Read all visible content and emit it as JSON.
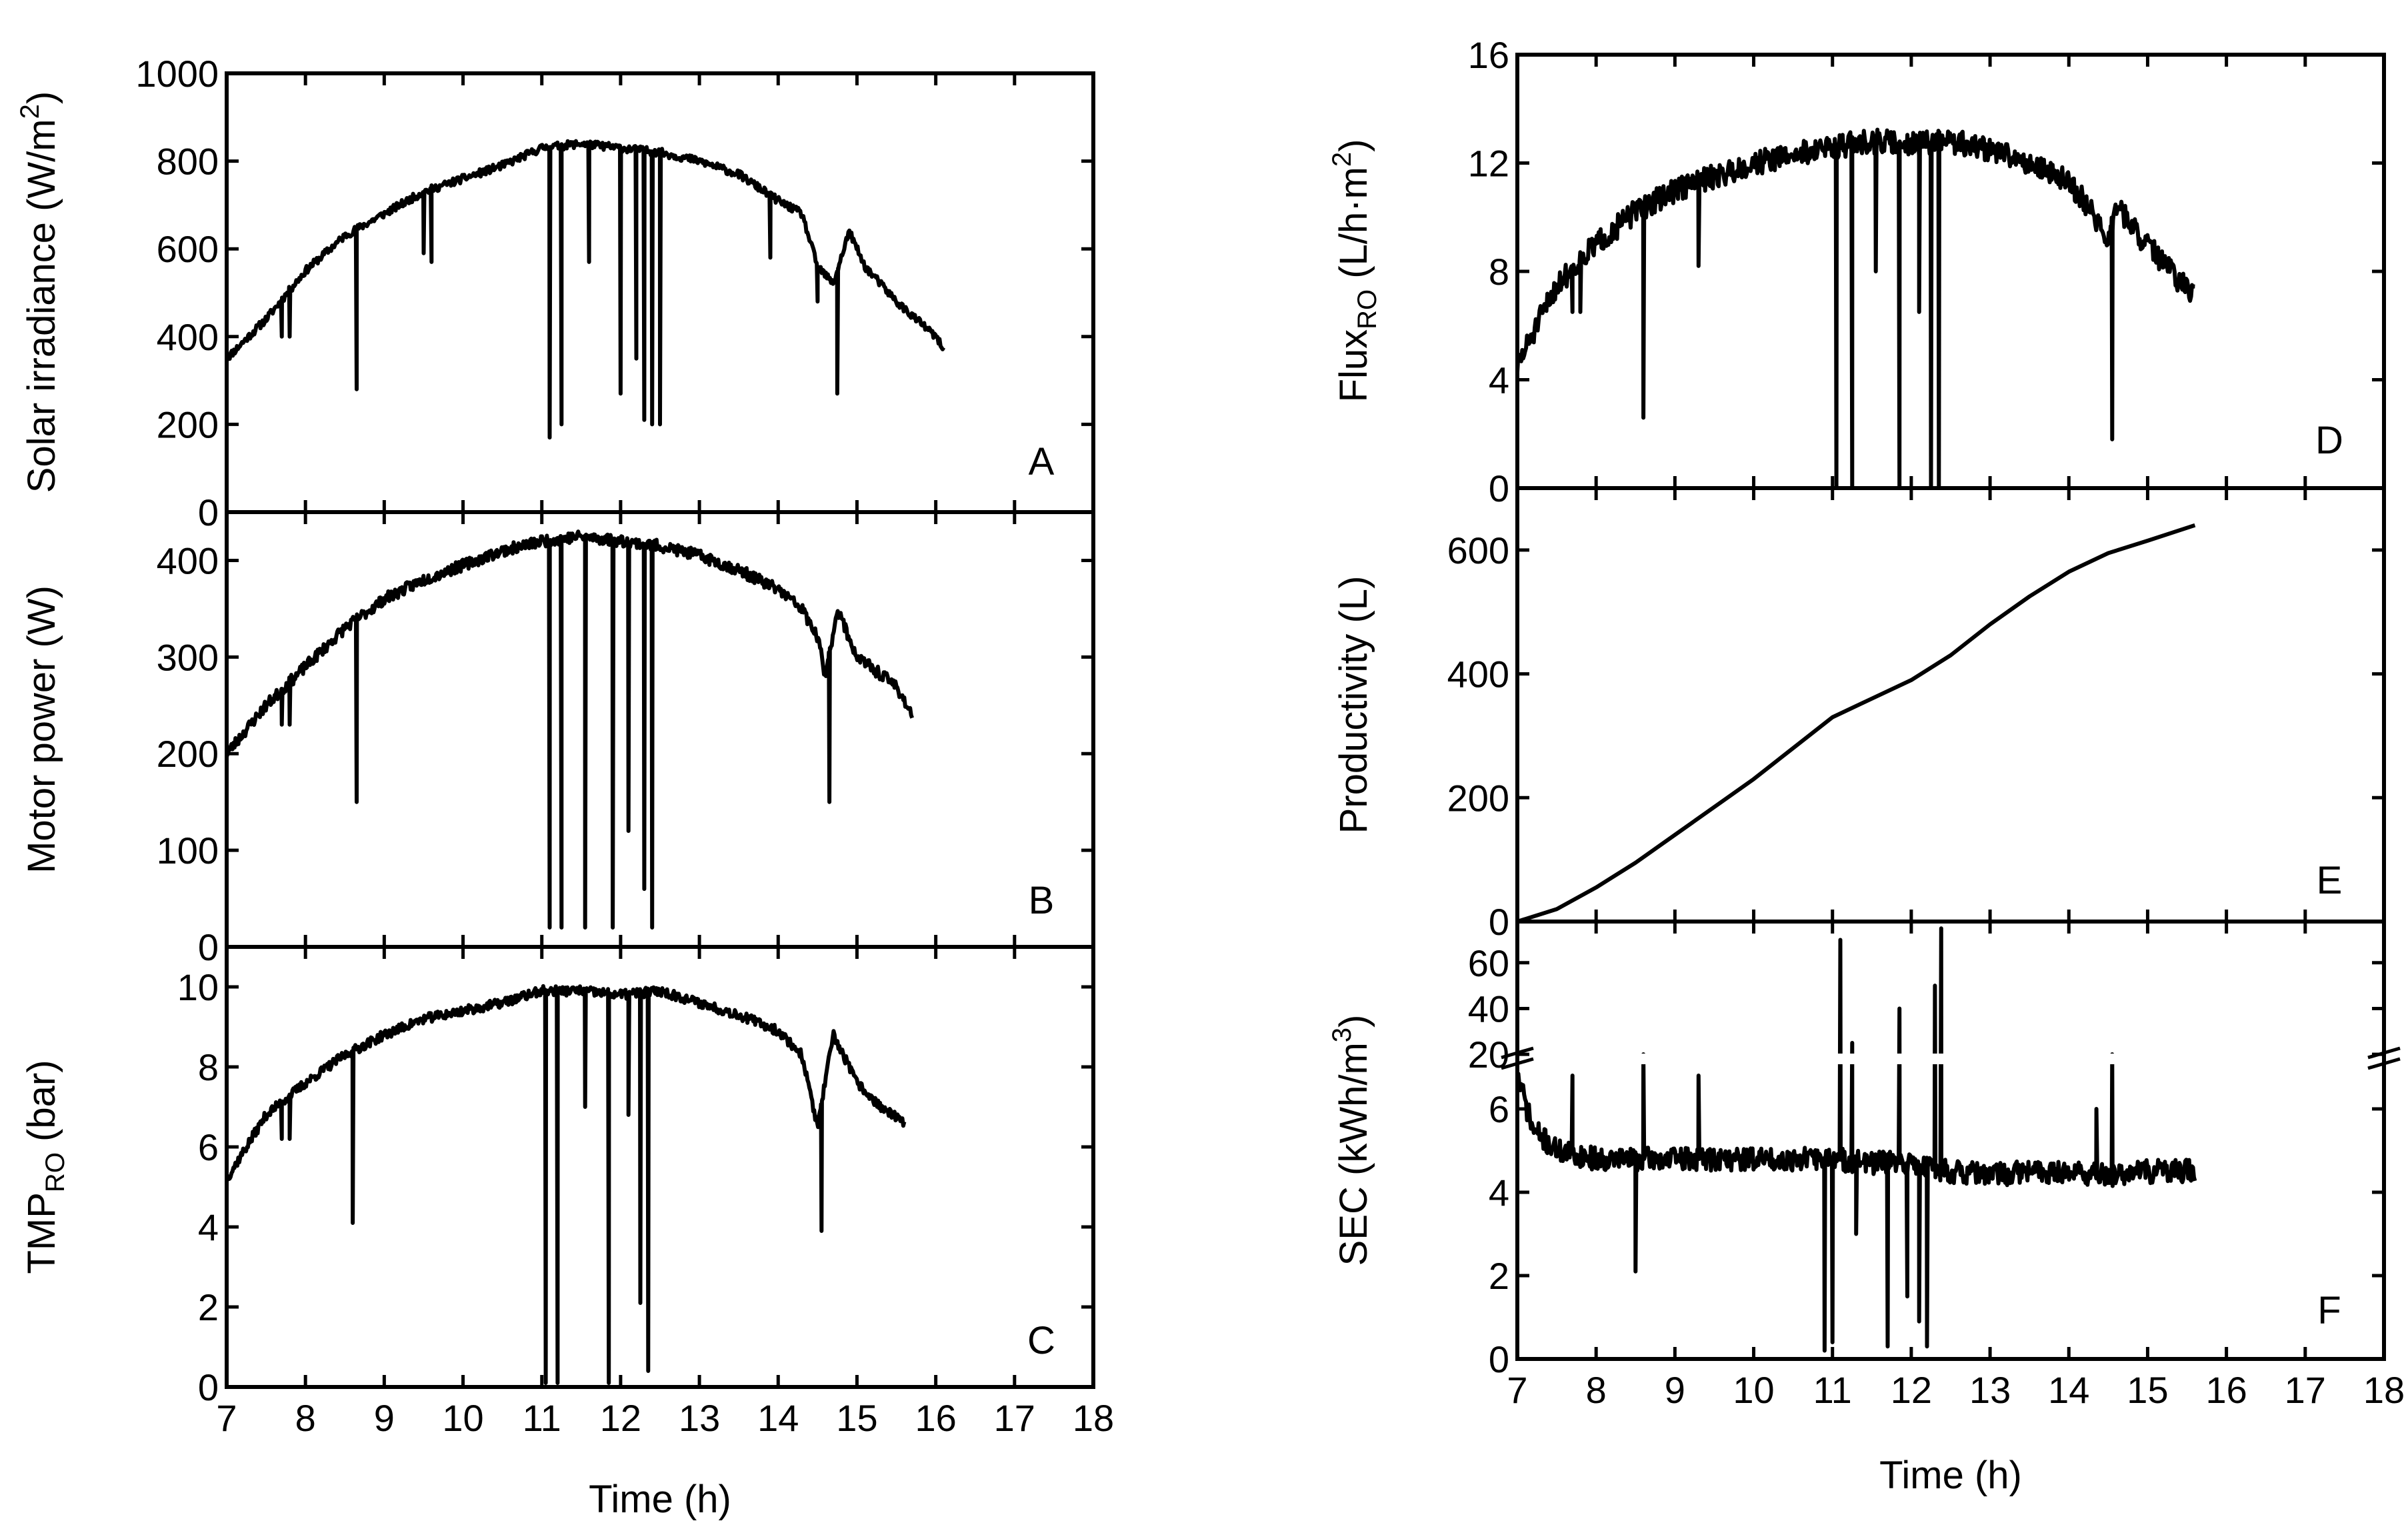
{
  "chart_data": [
    {
      "id": "A",
      "type": "line",
      "panel_label": "A",
      "ylabel": "Solar irradiance (W/m²)",
      "ylim": [
        0,
        1000
      ],
      "yticks": [
        0,
        200,
        400,
        600,
        800,
        1000
      ],
      "xlim": [
        7,
        18
      ],
      "series": [
        {
          "name": "Solar irradiance",
          "base": [
            [
              7.0,
              350
            ],
            [
              7.5,
              440
            ],
            [
              8.0,
              550
            ],
            [
              8.5,
              630
            ],
            [
              9.0,
              680
            ],
            [
              9.5,
              730
            ],
            [
              10.0,
              760
            ],
            [
              10.5,
              790
            ],
            [
              11.0,
              830
            ],
            [
              11.5,
              840
            ],
            [
              12.0,
              830
            ],
            [
              12.5,
              820
            ],
            [
              13.0,
              800
            ],
            [
              13.5,
              770
            ],
            [
              14.0,
              710
            ],
            [
              14.3,
              680
            ],
            [
              14.5,
              560
            ],
            [
              14.7,
              520
            ],
            [
              14.9,
              640
            ],
            [
              15.1,
              560
            ],
            [
              15.5,
              480
            ],
            [
              16.0,
              400
            ],
            [
              16.1,
              370
            ]
          ],
          "dips": [
            [
              7.7,
              400
            ],
            [
              7.8,
              400
            ],
            [
              8.65,
              280
            ],
            [
              9.5,
              590
            ],
            [
              9.6,
              570
            ],
            [
              11.1,
              170
            ],
            [
              11.25,
              200
            ],
            [
              11.6,
              570
            ],
            [
              12.0,
              270
            ],
            [
              12.2,
              350
            ],
            [
              12.3,
              210
            ],
            [
              12.4,
              200
            ],
            [
              12.5,
              200
            ],
            [
              13.9,
              580
            ],
            [
              14.5,
              480
            ],
            [
              14.75,
              270
            ]
          ]
        }
      ]
    },
    {
      "id": "B",
      "type": "line",
      "panel_label": "B",
      "ylabel": "Motor power  (W)",
      "ylim": [
        0,
        450
      ],
      "yticks": [
        0,
        100,
        200,
        300,
        400
      ],
      "xlim": [
        7,
        18
      ],
      "series": [
        {
          "name": "Motor power",
          "base": [
            [
              7.0,
              200
            ],
            [
              7.5,
              250
            ],
            [
              8.0,
              290
            ],
            [
              8.5,
              330
            ],
            [
              9.0,
              360
            ],
            [
              9.5,
              380
            ],
            [
              10.0,
              395
            ],
            [
              10.5,
              410
            ],
            [
              11.0,
              420
            ],
            [
              11.5,
              425
            ],
            [
              12.0,
              420
            ],
            [
              12.5,
              415
            ],
            [
              13.0,
              405
            ],
            [
              13.5,
              390
            ],
            [
              14.0,
              370
            ],
            [
              14.3,
              350
            ],
            [
              14.5,
              320
            ],
            [
              14.6,
              280
            ],
            [
              14.75,
              350
            ],
            [
              15.0,
              300
            ],
            [
              15.5,
              270
            ],
            [
              15.7,
              240
            ]
          ],
          "dips": [
            [
              7.7,
              230
            ],
            [
              7.8,
              230
            ],
            [
              8.65,
              150
            ],
            [
              11.1,
              20
            ],
            [
              11.25,
              20
            ],
            [
              11.55,
              20
            ],
            [
              11.9,
              20
            ],
            [
              12.1,
              120
            ],
            [
              12.3,
              60
            ],
            [
              12.4,
              20
            ],
            [
              14.65,
              150
            ]
          ]
        }
      ]
    },
    {
      "id": "C",
      "type": "line",
      "panel_label": "C",
      "ylabel": "TMP_RO (bar)",
      "ylim": [
        0,
        11
      ],
      "yticks": [
        0,
        2,
        4,
        6,
        8,
        10
      ],
      "xlim": [
        7,
        18
      ],
      "xticks": [
        7,
        8,
        9,
        10,
        11,
        12,
        13,
        14,
        15,
        16,
        17,
        18
      ],
      "xlabel": "Time (h)",
      "series": [
        {
          "name": "TMP RO",
          "base": [
            [
              7.0,
              5.2
            ],
            [
              7.5,
              6.8
            ],
            [
              8.0,
              7.6
            ],
            [
              8.5,
              8.3
            ],
            [
              9.0,
              8.8
            ],
            [
              9.5,
              9.2
            ],
            [
              10.0,
              9.4
            ],
            [
              10.5,
              9.6
            ],
            [
              11.0,
              9.9
            ],
            [
              11.5,
              9.9
            ],
            [
              12.0,
              9.8
            ],
            [
              12.5,
              9.9
            ],
            [
              13.0,
              9.6
            ],
            [
              13.5,
              9.3
            ],
            [
              14.0,
              8.9
            ],
            [
              14.3,
              8.3
            ],
            [
              14.5,
              6.5
            ],
            [
              14.7,
              8.8
            ],
            [
              15.0,
              7.6
            ],
            [
              15.3,
              7.0
            ],
            [
              15.6,
              6.6
            ]
          ],
          "dips": [
            [
              7.7,
              6.2
            ],
            [
              7.8,
              6.2
            ],
            [
              8.6,
              4.1
            ],
            [
              11.05,
              0.1
            ],
            [
              11.2,
              0.1
            ],
            [
              11.55,
              7.0
            ],
            [
              11.85,
              0.1
            ],
            [
              12.1,
              6.8
            ],
            [
              12.25,
              2.1
            ],
            [
              12.35,
              0.4
            ],
            [
              14.55,
              3.9
            ]
          ]
        }
      ]
    },
    {
      "id": "D",
      "type": "line",
      "panel_label": "D",
      "ylabel": "Flux_RO (L/h·m²)",
      "ylim": [
        0,
        16
      ],
      "yticks": [
        0,
        4,
        8,
        12,
        16
      ],
      "xlim": [
        7,
        18
      ],
      "series": [
        {
          "name": "Flux RO",
          "base": [
            [
              7.0,
              4.5
            ],
            [
              7.5,
              7.5
            ],
            [
              8.0,
              9.0
            ],
            [
              8.5,
              10.2
            ],
            [
              9.0,
              11.0
            ],
            [
              9.5,
              11.5
            ],
            [
              10.0,
              12.0
            ],
            [
              10.5,
              12.3
            ],
            [
              11.0,
              12.6
            ],
            [
              11.5,
              12.8
            ],
            [
              12.0,
              12.7
            ],
            [
              12.5,
              12.8
            ],
            [
              13.0,
              12.5
            ],
            [
              13.5,
              12.0
            ],
            [
              14.0,
              11.3
            ],
            [
              14.3,
              10.2
            ],
            [
              14.5,
              9.0
            ],
            [
              14.6,
              10.5
            ],
            [
              14.8,
              9.6
            ],
            [
              15.2,
              8.3
            ],
            [
              15.6,
              7.0
            ]
          ],
          "dips": [
            [
              7.7,
              6.5
            ],
            [
              7.8,
              6.5
            ],
            [
              8.6,
              2.6
            ],
            [
              9.3,
              8.2
            ],
            [
              11.05,
              0.0
            ],
            [
              11.25,
              0.0
            ],
            [
              11.55,
              8.0
            ],
            [
              11.85,
              0.0
            ],
            [
              12.1,
              6.5
            ],
            [
              12.25,
              0.0
            ],
            [
              12.35,
              0.0
            ],
            [
              14.55,
              1.8
            ]
          ]
        }
      ]
    },
    {
      "id": "E",
      "type": "line",
      "panel_label": "E",
      "ylabel": "Productivity (L)",
      "ylim": [
        0,
        700
      ],
      "yticks": [
        0,
        200,
        400,
        600
      ],
      "xlim": [
        7,
        18
      ],
      "series": [
        {
          "name": "Productivity",
          "points": [
            [
              7.0,
              0
            ],
            [
              7.5,
              20
            ],
            [
              8.0,
              55
            ],
            [
              8.5,
              95
            ],
            [
              9.0,
              140
            ],
            [
              9.5,
              185
            ],
            [
              10.0,
              230
            ],
            [
              10.5,
              280
            ],
            [
              11.0,
              330
            ],
            [
              11.5,
              360
            ],
            [
              12.0,
              390
            ],
            [
              12.5,
              430
            ],
            [
              13.0,
              480
            ],
            [
              13.5,
              525
            ],
            [
              14.0,
              565
            ],
            [
              14.5,
              595
            ],
            [
              15.0,
              615
            ],
            [
              15.6,
              640
            ]
          ]
        }
      ]
    },
    {
      "id": "F",
      "type": "line",
      "panel_label": "F",
      "ylabel": "SEC (kWh/m³)",
      "xlabel": "Time (h)",
      "xlim": [
        7,
        18
      ],
      "xticks": [
        7,
        8,
        9,
        10,
        11,
        12,
        13,
        14,
        15,
        16,
        17,
        18
      ],
      "broken_axis": {
        "lower": {
          "ylim": [
            0,
            7.2
          ],
          "yticks": [
            0,
            2,
            4,
            6
          ]
        },
        "upper": {
          "ylim": [
            18,
            78
          ],
          "yticks": [
            20,
            40,
            60
          ]
        }
      },
      "series": [
        {
          "name": "SEC",
          "base": [
            [
              7.0,
              6.8
            ],
            [
              7.2,
              5.5
            ],
            [
              7.5,
              5.0
            ],
            [
              8.0,
              4.8
            ],
            [
              8.5,
              4.8
            ],
            [
              9.0,
              4.8
            ],
            [
              9.5,
              4.8
            ],
            [
              10.0,
              4.8
            ],
            [
              10.5,
              4.8
            ],
            [
              11.0,
              4.8
            ],
            [
              11.5,
              4.7
            ],
            [
              12.0,
              4.7
            ],
            [
              12.5,
              4.5
            ],
            [
              13.0,
              4.4
            ],
            [
              13.5,
              4.5
            ],
            [
              14.0,
              4.5
            ],
            [
              14.5,
              4.4
            ],
            [
              15.0,
              4.5
            ],
            [
              15.6,
              4.5
            ]
          ],
          "spikes": [
            [
              7.7,
              6.8
            ],
            [
              8.5,
              2.1
            ],
            [
              8.6,
              20.0
            ],
            [
              9.3,
              6.8
            ],
            [
              10.9,
              0.2
            ],
            [
              11.0,
              0.4
            ],
            [
              11.1,
              70.0
            ],
            [
              11.25,
              25.0
            ],
            [
              11.3,
              3.0
            ],
            [
              11.7,
              0.3
            ],
            [
              11.85,
              40.0
            ],
            [
              11.95,
              1.5
            ],
            [
              12.1,
              0.9
            ],
            [
              12.2,
              0.3
            ],
            [
              12.3,
              50.0
            ],
            [
              12.38,
              75.0
            ],
            [
              14.35,
              6.0
            ],
            [
              14.55,
              20.0
            ]
          ]
        }
      ]
    }
  ]
}
